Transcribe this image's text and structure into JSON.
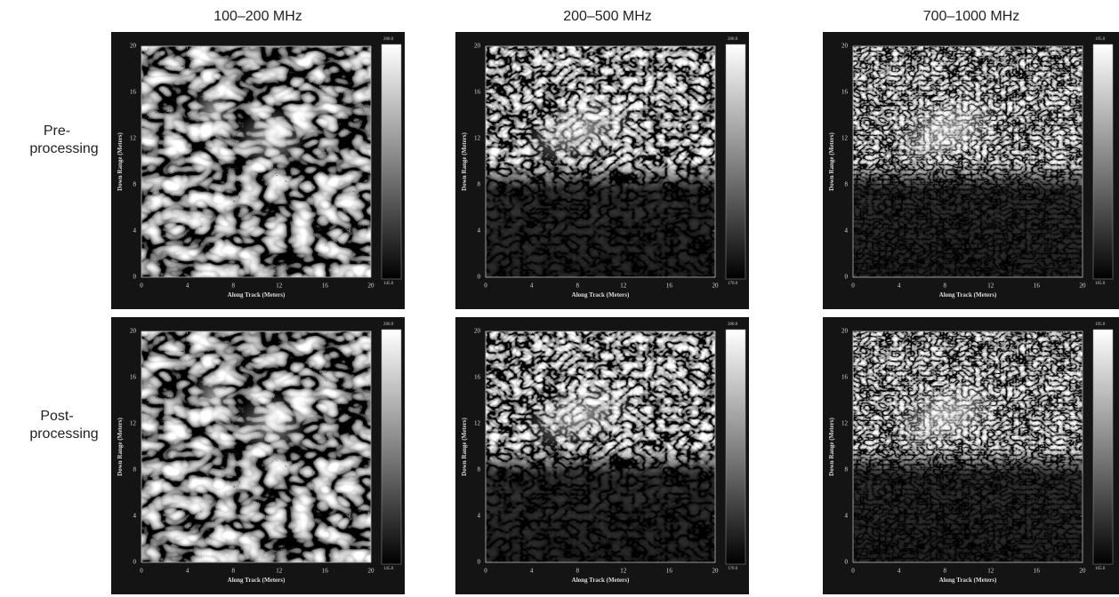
{
  "column_titles": [
    "100–200 MHz",
    "200–500 MHz",
    "700–1000 MHz"
  ],
  "row_labels": [
    [
      "Pre-",
      "processing"
    ],
    [
      "Post-",
      "processing"
    ]
  ],
  "axes": {
    "x_label": "Along Track (Meters)",
    "y_label": "Down Range (Meters)",
    "ticks": [
      0,
      4,
      8,
      12,
      16,
      20
    ]
  },
  "panels": [
    [
      {
        "colorbar_top": "200.0",
        "colorbar_bottom": "145.0"
      },
      {
        "colorbar_top": "200.0",
        "colorbar_bottom": "170.0"
      },
      {
        "colorbar_top": "195.0",
        "colorbar_bottom": "165.0"
      }
    ],
    [
      {
        "colorbar_top": "200.0",
        "colorbar_bottom": "145.0"
      },
      {
        "colorbar_top": "200.0",
        "colorbar_bottom": "170.0"
      },
      {
        "colorbar_top": "195.0",
        "colorbar_bottom": "165.0"
      }
    ]
  ]
}
